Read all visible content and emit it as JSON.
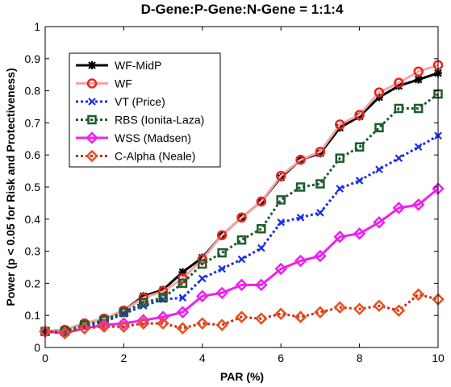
{
  "chart_data": {
    "type": "line",
    "title": "D-Gene:P-Gene:N-Gene = 1:1:4",
    "xlabel": "PAR (%)",
    "ylabel": "Power (p < 0.05 for Risk and Protectiveness)",
    "xlim": [
      0,
      10
    ],
    "ylim": [
      0,
      1
    ],
    "xticks": [
      "0",
      "2",
      "4",
      "6",
      "8",
      "10"
    ],
    "yticks": [
      "0",
      "0.1",
      "0.2",
      "0.3",
      "0.4",
      "0.5",
      "0.6",
      "0.7",
      "0.8",
      "0.9",
      "1"
    ],
    "grid": false,
    "legend_position": "top-left",
    "x": [
      0,
      0.5,
      1,
      1.5,
      2,
      2.5,
      3,
      3.5,
      4,
      4.5,
      5,
      5.5,
      6,
      6.5,
      7,
      7.5,
      8,
      8.5,
      9,
      9.5,
      10
    ],
    "series": [
      {
        "name": "WF-MidP",
        "color": "#000000",
        "style": "solid",
        "marker": "star",
        "values": [
          0.05,
          0.055,
          0.075,
          0.09,
          0.115,
          0.16,
          0.18,
          0.235,
          0.28,
          0.35,
          0.405,
          0.455,
          0.53,
          0.585,
          0.605,
          0.685,
          0.72,
          0.78,
          0.815,
          0.835,
          0.855
        ]
      },
      {
        "name": "WF",
        "color": "#f5a5a5",
        "marker_color": "#e8251e",
        "style": "solid",
        "marker": "circle",
        "values": [
          0.05,
          0.055,
          0.075,
          0.09,
          0.115,
          0.155,
          0.175,
          0.215,
          0.275,
          0.35,
          0.405,
          0.455,
          0.535,
          0.585,
          0.61,
          0.695,
          0.725,
          0.795,
          0.825,
          0.86,
          0.88
        ]
      },
      {
        "name": "VT (Price)",
        "color": "#1a2ee8",
        "style": "dotted",
        "marker": "x",
        "values": [
          0.05,
          0.045,
          0.065,
          0.08,
          0.105,
          0.13,
          0.15,
          0.155,
          0.215,
          0.245,
          0.275,
          0.31,
          0.39,
          0.405,
          0.42,
          0.495,
          0.52,
          0.555,
          0.59,
          0.625,
          0.66
        ]
      },
      {
        "name": "RBS (Ionita-Laza)",
        "color": "#1f5c2e",
        "style": "dotted",
        "marker": "square",
        "values": [
          0.05,
          0.05,
          0.07,
          0.085,
          0.11,
          0.14,
          0.155,
          0.2,
          0.26,
          0.295,
          0.335,
          0.37,
          0.46,
          0.5,
          0.51,
          0.59,
          0.625,
          0.685,
          0.745,
          0.745,
          0.79
        ]
      },
      {
        "name": "WSS (Madsen)",
        "color": "#ee20ee",
        "style": "solid",
        "marker": "diamond",
        "values": [
          0.05,
          0.045,
          0.06,
          0.07,
          0.075,
          0.085,
          0.095,
          0.11,
          0.16,
          0.17,
          0.195,
          0.195,
          0.245,
          0.27,
          0.285,
          0.345,
          0.355,
          0.39,
          0.435,
          0.445,
          0.495
        ]
      },
      {
        "name": "C-Alpha (Neale)",
        "color": "#c0301a",
        "marker_color": "#e8501e",
        "style": "dotted",
        "marker": "diamond",
        "values": [
          0.05,
          0.045,
          0.06,
          0.065,
          0.065,
          0.075,
          0.075,
          0.06,
          0.075,
          0.07,
          0.095,
          0.09,
          0.105,
          0.095,
          0.11,
          0.125,
          0.12,
          0.13,
          0.115,
          0.165,
          0.15
        ]
      }
    ]
  }
}
